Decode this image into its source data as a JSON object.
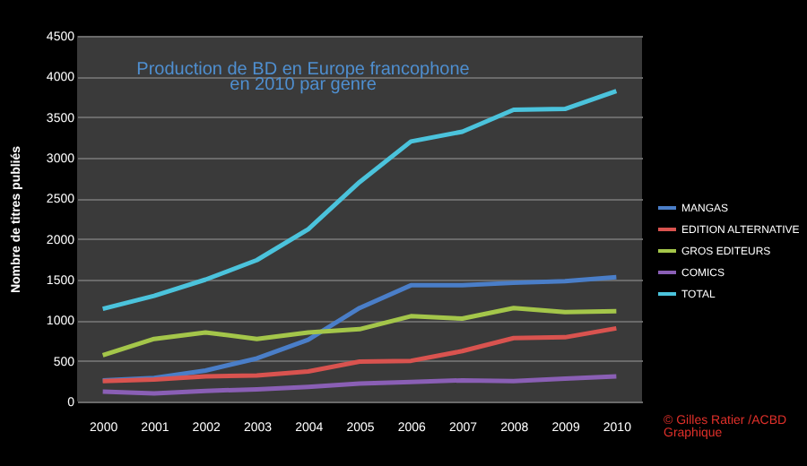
{
  "chart_data": {
    "type": "line",
    "title": [
      "Production de BD  en Europe francophone",
      "en 2010 par genre"
    ],
    "ylabel": "Nombre de titres publiés",
    "annotations": [
      "© Gilles Ratier /ACBD",
      "Graphique"
    ],
    "x": [
      2000,
      2001,
      2002,
      2003,
      2004,
      2005,
      2006,
      2007,
      2008,
      2009,
      2010
    ],
    "xticks": [
      2000,
      2001,
      2002,
      2003,
      2004,
      2005,
      2006,
      2007,
      2008,
      2009,
      2010
    ],
    "xlim": [
      1999.5,
      2010.5
    ],
    "ylim": [
      0,
      4500
    ],
    "yticks": [
      0,
      500,
      1000,
      1500,
      2000,
      2500,
      3000,
      3500,
      4000,
      4500
    ],
    "grid": "y",
    "legend": "right",
    "marker": "none",
    "line_style": "solid",
    "series": [
      {
        "name": "MANGAS",
        "color": "#4a7ec8",
        "values": [
          260,
          290,
          380,
          530,
          760,
          1150,
          1430,
          1430,
          1460,
          1480,
          1530
        ]
      },
      {
        "name": "EDITION ALTERNATIVE",
        "color": "#d9534f",
        "values": [
          250,
          270,
          310,
          320,
          370,
          490,
          500,
          620,
          780,
          790,
          900
        ]
      },
      {
        "name": "GROS EDITEURS",
        "color": "#a4c64a",
        "values": [
          570,
          770,
          850,
          770,
          850,
          890,
          1050,
          1020,
          1150,
          1100,
          1110
        ]
      },
      {
        "name": "COMICS",
        "color": "#8a5fb5",
        "values": [
          120,
          100,
          130,
          150,
          180,
          220,
          240,
          260,
          250,
          280,
          310
        ]
      },
      {
        "name": "TOTAL",
        "color": "#4bc3dc",
        "values": [
          1140,
          1300,
          1500,
          1740,
          2120,
          2700,
          3200,
          3320,
          3590,
          3600,
          3820
        ]
      }
    ]
  }
}
